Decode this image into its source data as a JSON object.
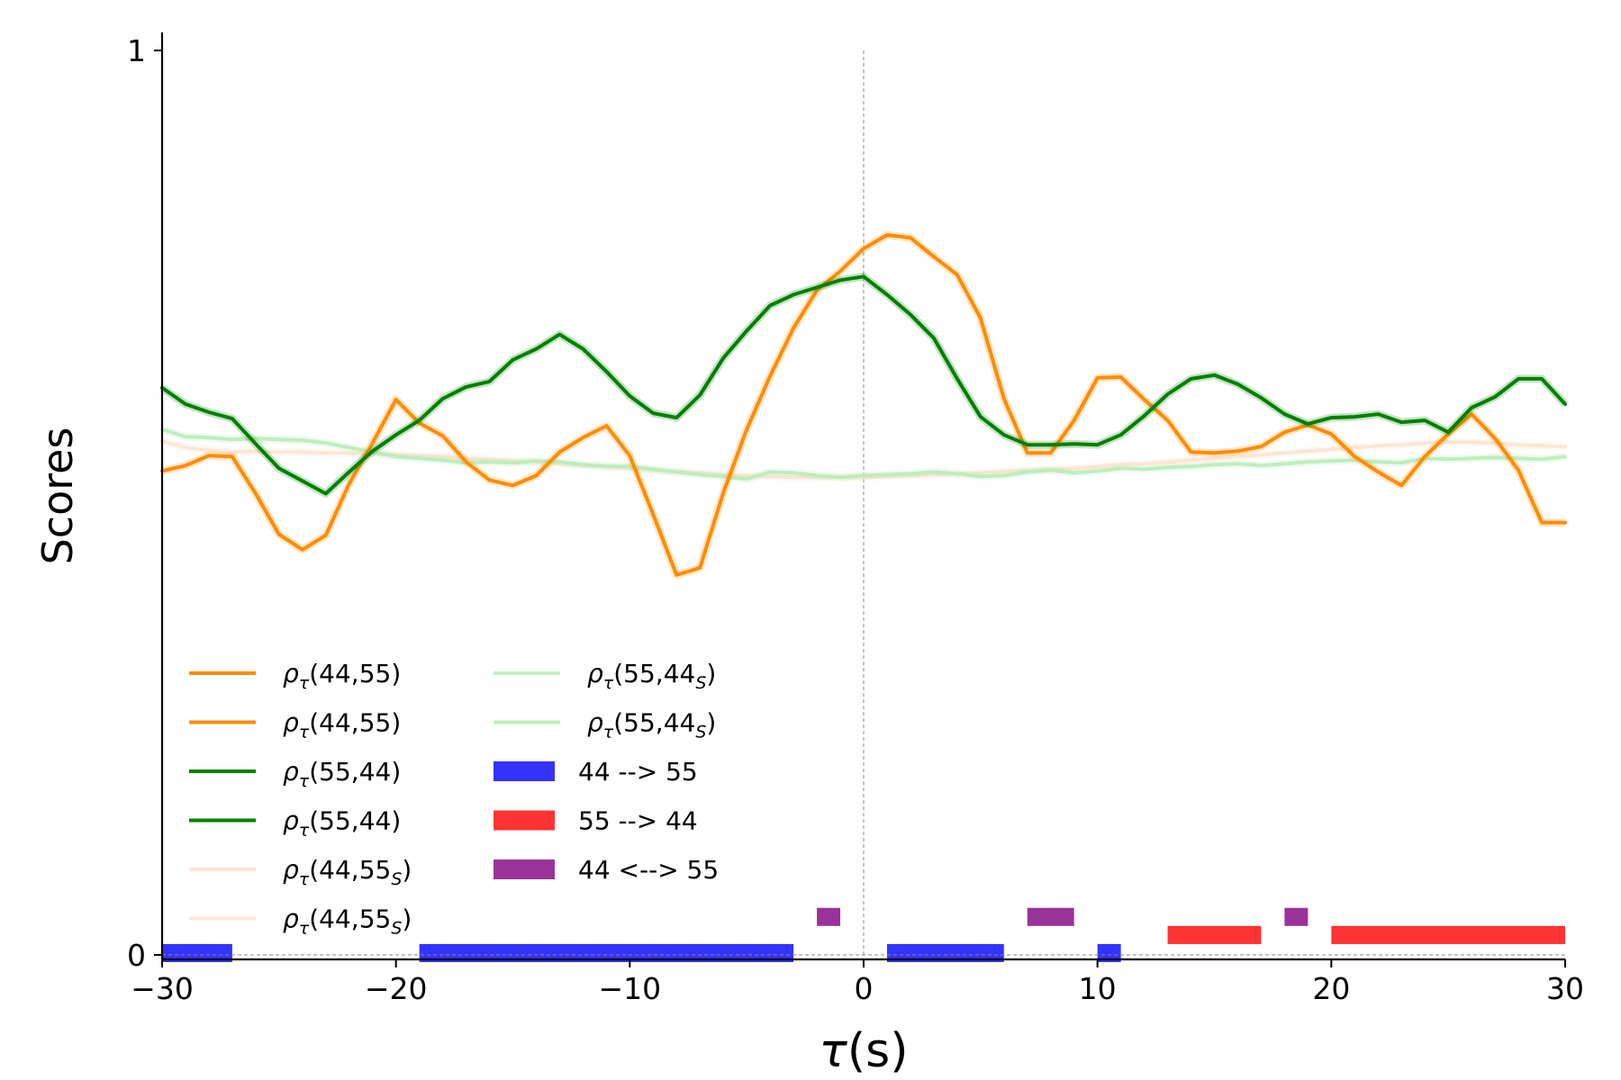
{
  "chart_data": {
    "type": "line",
    "title": "",
    "xlabel": "τ(s)",
    "ylabel": "Scores",
    "xlim": [
      -30,
      30
    ],
    "ylim": [
      -0.005,
      1.02
    ],
    "x_ticks": [
      "−30",
      "−20",
      "−10",
      "0",
      "10",
      "20",
      "30"
    ],
    "x_tick_values": [
      -30,
      -20,
      -10,
      0,
      10,
      20,
      30
    ],
    "y_ticks": [
      "0",
      "1"
    ],
    "y_tick_values": [
      0,
      1
    ],
    "zero_line_vertical": 0,
    "legend_placement": "lower-left",
    "x": [
      -30,
      -29,
      -28,
      -27,
      -26,
      -25,
      -24,
      -23,
      -22,
      -21,
      -20,
      -19,
      -18,
      -17,
      -16,
      -15,
      -14,
      -13,
      -12,
      -11,
      -10,
      -9,
      -8,
      -7,
      -6,
      -5,
      -4,
      -3,
      -2,
      -1,
      0,
      1,
      2,
      3,
      4,
      5,
      6,
      7,
      8,
      9,
      10,
      11,
      12,
      13,
      14,
      15,
      16,
      17,
      18,
      19,
      20,
      21,
      22,
      23,
      24,
      25,
      26,
      27,
      28,
      29,
      30
    ],
    "series": [
      {
        "name": "ρτ(44,55)",
        "color": "#ff8c00",
        "opacity": 1,
        "values": [
          0.535,
          0.541,
          0.552,
          0.551,
          0.51,
          0.465,
          0.448,
          0.464,
          0.521,
          0.566,
          0.614,
          0.588,
          0.574,
          0.545,
          0.525,
          0.519,
          0.53,
          0.556,
          0.572,
          0.585,
          0.552,
          0.487,
          0.42,
          0.428,
          0.511,
          0.581,
          0.64,
          0.693,
          0.735,
          0.756,
          0.781,
          0.796,
          0.793,
          0.772,
          0.752,
          0.704,
          0.615,
          0.555,
          0.555,
          0.591,
          0.638,
          0.639,
          0.614,
          0.591,
          0.556,
          0.555,
          0.557,
          0.562,
          0.578,
          0.586,
          0.576,
          0.551,
          0.534,
          0.519,
          0.551,
          0.576,
          0.598,
          0.571,
          0.536,
          0.478,
          0.478
        ]
      },
      {
        "name": "ρτ(55,44)",
        "color": "#008000",
        "opacity": 1,
        "values": [
          0.627,
          0.609,
          0.6,
          0.593,
          0.565,
          0.538,
          0.524,
          0.51,
          0.534,
          0.557,
          0.575,
          0.591,
          0.615,
          0.628,
          0.634,
          0.658,
          0.67,
          0.686,
          0.67,
          0.645,
          0.618,
          0.599,
          0.594,
          0.619,
          0.66,
          0.69,
          0.718,
          0.73,
          0.738,
          0.746,
          0.75,
          0.73,
          0.708,
          0.682,
          0.637,
          0.595,
          0.575,
          0.564,
          0.564,
          0.565,
          0.564,
          0.575,
          0.596,
          0.62,
          0.637,
          0.641,
          0.631,
          0.616,
          0.598,
          0.587,
          0.594,
          0.595,
          0.598,
          0.589,
          0.591,
          0.578,
          0.605,
          0.617,
          0.637,
          0.637,
          0.609
        ]
      },
      {
        "name": "ρτ(44,55S)",
        "color": "#fde3cf",
        "opacity": 0.9,
        "values": [
          0.568,
          0.561,
          0.558,
          0.556,
          0.557,
          0.556,
          0.556,
          0.555,
          0.555,
          0.554,
          0.553,
          0.552,
          0.551,
          0.549,
          0.548,
          0.546,
          0.545,
          0.543,
          0.541,
          0.54,
          0.538,
          0.536,
          0.534,
          0.533,
          0.531,
          0.53,
          0.529,
          0.528,
          0.528,
          0.528,
          0.528,
          0.529,
          0.53,
          0.531,
          0.532,
          0.533,
          0.535,
          0.536,
          0.537,
          0.538,
          0.54,
          0.542,
          0.543,
          0.545,
          0.547,
          0.549,
          0.551,
          0.553,
          0.555,
          0.557,
          0.559,
          0.561,
          0.563,
          0.564,
          0.566,
          0.567,
          0.567,
          0.566,
          0.564,
          0.563,
          0.562
        ]
      },
      {
        "name": "ρτ(55,44S)",
        "color": "#b8ecb8",
        "opacity": 0.9,
        "values": [
          0.581,
          0.573,
          0.572,
          0.57,
          0.571,
          0.57,
          0.569,
          0.566,
          0.561,
          0.556,
          0.551,
          0.549,
          0.547,
          0.544,
          0.545,
          0.544,
          0.546,
          0.545,
          0.542,
          0.54,
          0.54,
          0.537,
          0.534,
          0.531,
          0.529,
          0.526,
          0.534,
          0.533,
          0.53,
          0.528,
          0.53,
          0.531,
          0.532,
          0.534,
          0.532,
          0.529,
          0.53,
          0.534,
          0.536,
          0.533,
          0.535,
          0.538,
          0.537,
          0.539,
          0.54,
          0.542,
          0.543,
          0.541,
          0.543,
          0.545,
          0.546,
          0.547,
          0.545,
          0.544,
          0.549,
          0.548,
          0.549,
          0.55,
          0.549,
          0.548,
          0.551
        ]
      }
    ],
    "legend": [
      {
        "kind": "line",
        "base": "ρ",
        "sub": "τ",
        "args": "(44,55",
        "argsub": "",
        "close": ")",
        "color": "#ff8c00",
        "opacity": 1
      },
      {
        "kind": "line",
        "base": "ρ",
        "sub": "τ",
        "args": "(44,55",
        "argsub": "",
        "close": ")",
        "color": "#ff8c00",
        "opacity": 1
      },
      {
        "kind": "line",
        "base": "ρ",
        "sub": "τ",
        "args": "(55,44",
        "argsub": "",
        "close": ")",
        "color": "#008000",
        "opacity": 1
      },
      {
        "kind": "line",
        "base": "ρ",
        "sub": "τ",
        "args": "(55,44",
        "argsub": "",
        "close": ")",
        "color": "#008000",
        "opacity": 1
      },
      {
        "kind": "line",
        "base": "ρ",
        "sub": "τ",
        "args": "(44,55",
        "argsub": "S",
        "close": ")",
        "color": "#fde3cf",
        "opacity": 0.9
      },
      {
        "kind": "line",
        "base": "ρ",
        "sub": "τ",
        "args": "(44,55",
        "argsub": "S",
        "close": ")",
        "color": "#fde3cf",
        "opacity": 0.9
      },
      {
        "kind": "line",
        "base": "ρ",
        "sub": "τ",
        "args": "(55,44",
        "argsub": "S",
        "close": ")",
        "color": "#b8ecb8",
        "opacity": 0.9
      },
      {
        "kind": "line",
        "base": "ρ",
        "sub": "τ",
        "args": "(55,44",
        "argsub": "S",
        "close": ")",
        "color": "#b8ecb8",
        "opacity": 0.9
      },
      {
        "kind": "patch",
        "label": "44 --> 55",
        "color": "#3333ff"
      },
      {
        "kind": "patch",
        "label": "55 --> 44",
        "color": "#ff3333"
      },
      {
        "kind": "patch",
        "label": "44 <--> 55",
        "color": "#993399"
      }
    ],
    "significance_bars": [
      {
        "label": "44 --> 55",
        "color": "#3333ff",
        "y_low": -0.008,
        "y_high": 0.012,
        "intervals": [
          [
            -30,
            -27
          ],
          [
            -19,
            -3
          ],
          [
            1,
            6
          ],
          [
            10,
            11
          ]
        ]
      },
      {
        "label": "55 --> 44",
        "color": "#ff3333",
        "y_low": 0.012,
        "y_high": 0.032,
        "intervals": [
          [
            13,
            17
          ],
          [
            20,
            30
          ]
        ]
      },
      {
        "label": "44 <--> 55",
        "color": "#993399",
        "y_low": 0.032,
        "y_high": 0.052,
        "intervals": [
          [
            -2,
            -1
          ],
          [
            7,
            9
          ],
          [
            18,
            19
          ]
        ]
      }
    ]
  }
}
